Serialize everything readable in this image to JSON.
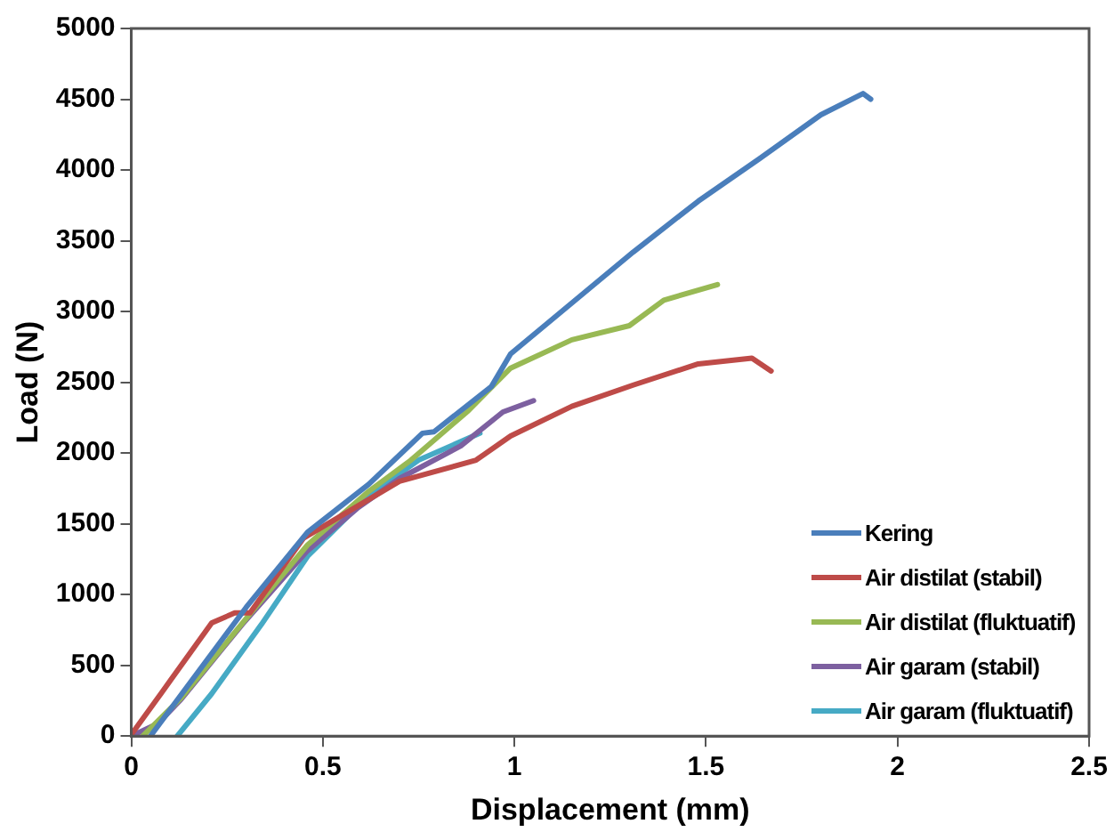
{
  "chart_data": {
    "type": "line",
    "xlabel": "Displacement (mm)",
    "ylabel": "Load (N)",
    "xlim": [
      0,
      2.5
    ],
    "xticks": [
      0,
      0.5,
      1,
      1.5,
      2,
      2.5
    ],
    "ylim": [
      0,
      5000
    ],
    "yticks": [
      0,
      500,
      1000,
      1500,
      2000,
      2500,
      3000,
      3500,
      4000,
      4500,
      5000
    ],
    "grid": false,
    "legend": "bottom right",
    "marker": "none",
    "line_style": "solid",
    "series": [
      {
        "name": "Kering",
        "color": "#4a7ebb",
        "x": [
          0.05,
          0.3,
          0.46,
          0.62,
          0.76,
          0.79,
          0.94,
          0.99,
          1.15,
          1.31,
          1.48,
          1.64,
          1.8,
          1.91,
          1.93
        ],
        "values": [
          0,
          910,
          1440,
          1780,
          2140,
          2150,
          2470,
          2700,
          3060,
          3420,
          3780,
          4080,
          4390,
          4540,
          4500
        ]
      },
      {
        "name": "Air distilat (stabil)",
        "color": "#be4b48",
        "x": [
          0,
          0.08,
          0.21,
          0.27,
          0.31,
          0.45,
          0.7,
          0.9,
          0.99,
          1.15,
          1.31,
          1.48,
          1.62,
          1.67
        ],
        "values": [
          10,
          310,
          800,
          870,
          870,
          1400,
          1800,
          1950,
          2120,
          2330,
          2480,
          2630,
          2670,
          2580
        ]
      },
      {
        "name": "Air distilat (fluktuatif)",
        "color": "#98b954",
        "x": [
          0.03,
          0.13,
          0.3,
          0.46,
          0.62,
          0.73,
          0.88,
          0.99,
          1.15,
          1.3,
          1.39,
          1.53
        ],
        "values": [
          0,
          270,
          830,
          1350,
          1730,
          1950,
          2300,
          2600,
          2800,
          2900,
          3080,
          3190
        ]
      },
      {
        "name": "Air garam (stabil)",
        "color": "#7d60a0",
        "x": [
          0,
          0.07,
          0.13,
          0.29,
          0.46,
          0.59,
          0.7,
          0.86,
          0.97,
          1.05
        ],
        "values": [
          0,
          90,
          260,
          790,
          1310,
          1610,
          1820,
          2050,
          2290,
          2370
        ]
      },
      {
        "name": "Air garam (fluktuatif)",
        "color": "#46aac5",
        "x": [
          0.12,
          0.21,
          0.34,
          0.46,
          0.62,
          0.75,
          0.91
        ],
        "values": [
          0,
          300,
          790,
          1270,
          1700,
          1950,
          2140
        ]
      }
    ]
  }
}
